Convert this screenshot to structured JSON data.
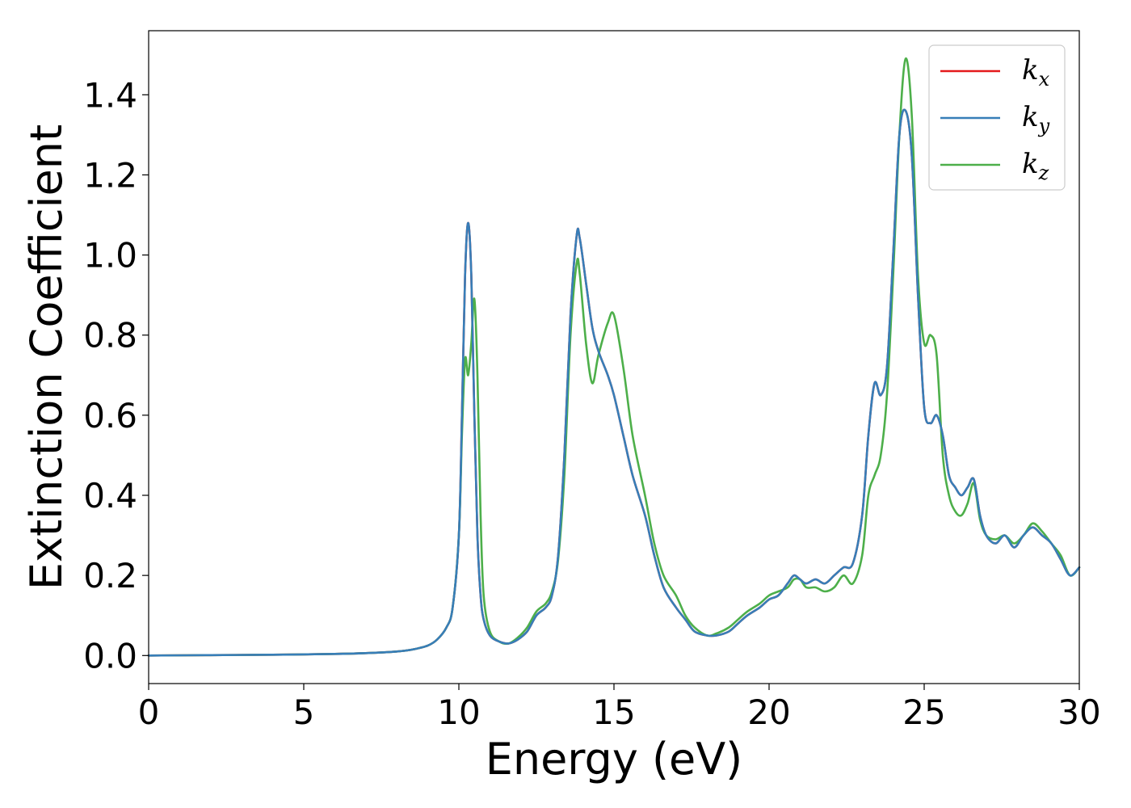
{
  "chart_data": {
    "type": "line",
    "title": "",
    "xlabel": "Energy (eV)",
    "ylabel": "Extinction Coefficient",
    "xlim": [
      0,
      30
    ],
    "ylim": [
      -0.07,
      1.56
    ],
    "xticks": [
      0,
      5,
      10,
      15,
      20,
      25,
      30
    ],
    "xtick_labels": [
      "0",
      "5",
      "10",
      "15",
      "20",
      "25",
      "30"
    ],
    "yticks": [
      0.0,
      0.2,
      0.4,
      0.6,
      0.8,
      1.0,
      1.2,
      1.4
    ],
    "ytick_labels": [
      "0.0",
      "0.2",
      "0.4",
      "0.6",
      "0.8",
      "1.0",
      "1.2",
      "1.4"
    ],
    "grid": false,
    "legend_position": "top-right",
    "series": [
      {
        "name": "kx",
        "label_base": "k",
        "label_sub": "x",
        "color": "#e41a1c",
        "x": [
          0,
          2,
          4,
          6,
          7,
          8,
          8.5,
          9,
          9.3,
          9.6,
          9.8,
          10.0,
          10.1,
          10.2,
          10.3,
          10.4,
          10.5,
          10.6,
          10.7,
          10.8,
          11.0,
          11.3,
          11.6,
          11.9,
          12.2,
          12.5,
          12.8,
          13.0,
          13.2,
          13.4,
          13.6,
          13.8,
          13.9,
          14.1,
          14.3,
          14.5,
          14.8,
          15.0,
          15.3,
          15.6,
          16.0,
          16.3,
          16.6,
          17.0,
          17.3,
          17.6,
          18.0,
          18.3,
          18.7,
          19.0,
          19.3,
          19.7,
          20.0,
          20.3,
          20.6,
          20.8,
          21.0,
          21.2,
          21.5,
          21.8,
          22.1,
          22.4,
          22.7,
          23.0,
          23.2,
          23.4,
          23.6,
          23.8,
          24.0,
          24.2,
          24.4,
          24.6,
          24.8,
          25.0,
          25.2,
          25.4,
          25.6,
          25.8,
          26.0,
          26.2,
          26.4,
          26.6,
          26.8,
          27.0,
          27.3,
          27.6,
          27.9,
          28.2,
          28.5,
          28.8,
          29.1,
          29.4,
          29.7,
          30.0
        ],
        "values": [
          0,
          0.001,
          0.002,
          0.004,
          0.006,
          0.01,
          0.015,
          0.025,
          0.04,
          0.07,
          0.12,
          0.3,
          0.6,
          0.95,
          1.08,
          0.95,
          0.6,
          0.3,
          0.15,
          0.09,
          0.05,
          0.035,
          0.03,
          0.04,
          0.06,
          0.1,
          0.12,
          0.15,
          0.25,
          0.5,
          0.85,
          1.05,
          1.04,
          0.93,
          0.82,
          0.76,
          0.7,
          0.65,
          0.55,
          0.45,
          0.35,
          0.25,
          0.17,
          0.12,
          0.09,
          0.06,
          0.05,
          0.05,
          0.06,
          0.08,
          0.1,
          0.12,
          0.14,
          0.15,
          0.18,
          0.2,
          0.19,
          0.18,
          0.19,
          0.18,
          0.2,
          0.22,
          0.23,
          0.35,
          0.55,
          0.68,
          0.65,
          0.72,
          1.0,
          1.3,
          1.36,
          1.25,
          0.9,
          0.62,
          0.58,
          0.6,
          0.55,
          0.45,
          0.42,
          0.4,
          0.42,
          0.44,
          0.35,
          0.3,
          0.28,
          0.3,
          0.27,
          0.3,
          0.32,
          0.3,
          0.28,
          0.24,
          0.2,
          0.22
        ]
      },
      {
        "name": "ky",
        "label_base": "k",
        "label_sub": "y",
        "color": "#377eb8",
        "x": [
          0,
          2,
          4,
          6,
          7,
          8,
          8.5,
          9,
          9.3,
          9.6,
          9.8,
          10.0,
          10.1,
          10.2,
          10.3,
          10.4,
          10.5,
          10.6,
          10.7,
          10.8,
          11.0,
          11.3,
          11.6,
          11.9,
          12.2,
          12.5,
          12.8,
          13.0,
          13.2,
          13.4,
          13.6,
          13.8,
          13.9,
          14.1,
          14.3,
          14.5,
          14.8,
          15.0,
          15.3,
          15.6,
          16.0,
          16.3,
          16.6,
          17.0,
          17.3,
          17.6,
          18.0,
          18.3,
          18.7,
          19.0,
          19.3,
          19.7,
          20.0,
          20.3,
          20.6,
          20.8,
          21.0,
          21.2,
          21.5,
          21.8,
          22.1,
          22.4,
          22.7,
          23.0,
          23.2,
          23.4,
          23.6,
          23.8,
          24.0,
          24.2,
          24.4,
          24.6,
          24.8,
          25.0,
          25.2,
          25.4,
          25.6,
          25.8,
          26.0,
          26.2,
          26.4,
          26.6,
          26.8,
          27.0,
          27.3,
          27.6,
          27.9,
          28.2,
          28.5,
          28.8,
          29.1,
          29.4,
          29.7,
          30.0
        ],
        "values": [
          0,
          0.001,
          0.002,
          0.004,
          0.006,
          0.01,
          0.015,
          0.025,
          0.04,
          0.07,
          0.12,
          0.3,
          0.6,
          0.95,
          1.08,
          0.95,
          0.6,
          0.3,
          0.15,
          0.09,
          0.05,
          0.035,
          0.03,
          0.04,
          0.06,
          0.1,
          0.12,
          0.15,
          0.25,
          0.5,
          0.85,
          1.05,
          1.04,
          0.93,
          0.82,
          0.76,
          0.7,
          0.65,
          0.55,
          0.45,
          0.35,
          0.25,
          0.17,
          0.12,
          0.09,
          0.06,
          0.05,
          0.05,
          0.06,
          0.08,
          0.1,
          0.12,
          0.14,
          0.15,
          0.18,
          0.2,
          0.19,
          0.18,
          0.19,
          0.18,
          0.2,
          0.22,
          0.23,
          0.35,
          0.55,
          0.68,
          0.65,
          0.72,
          1.0,
          1.3,
          1.36,
          1.25,
          0.9,
          0.62,
          0.58,
          0.6,
          0.55,
          0.45,
          0.42,
          0.4,
          0.42,
          0.44,
          0.35,
          0.3,
          0.28,
          0.3,
          0.27,
          0.3,
          0.32,
          0.3,
          0.28,
          0.24,
          0.2,
          0.22
        ]
      },
      {
        "name": "kz",
        "label_base": "k",
        "label_sub": "z",
        "color": "#4daf4a",
        "x": [
          0,
          2,
          4,
          6,
          7,
          8,
          8.5,
          9,
          9.3,
          9.6,
          9.8,
          10.0,
          10.1,
          10.2,
          10.3,
          10.4,
          10.5,
          10.6,
          10.7,
          10.8,
          11.0,
          11.3,
          11.6,
          11.9,
          12.2,
          12.5,
          12.8,
          13.0,
          13.2,
          13.4,
          13.6,
          13.8,
          13.9,
          14.1,
          14.3,
          14.5,
          14.8,
          15.0,
          15.3,
          15.6,
          16.0,
          16.3,
          16.6,
          17.0,
          17.3,
          17.6,
          18.0,
          18.3,
          18.7,
          19.0,
          19.3,
          19.7,
          20.0,
          20.3,
          20.6,
          20.8,
          21.0,
          21.2,
          21.5,
          21.8,
          22.1,
          22.4,
          22.7,
          23.0,
          23.2,
          23.4,
          23.6,
          23.8,
          24.0,
          24.2,
          24.4,
          24.6,
          24.8,
          25.0,
          25.2,
          25.4,
          25.6,
          25.8,
          26.0,
          26.2,
          26.4,
          26.6,
          26.8,
          27.0,
          27.3,
          27.6,
          27.9,
          28.2,
          28.5,
          28.8,
          29.1,
          29.4,
          29.7,
          30.0
        ],
        "values": [
          0,
          0.001,
          0.002,
          0.004,
          0.006,
          0.01,
          0.015,
          0.025,
          0.04,
          0.07,
          0.12,
          0.3,
          0.55,
          0.74,
          0.7,
          0.78,
          0.89,
          0.7,
          0.35,
          0.15,
          0.06,
          0.035,
          0.03,
          0.045,
          0.07,
          0.11,
          0.13,
          0.16,
          0.24,
          0.45,
          0.8,
          0.98,
          0.95,
          0.78,
          0.68,
          0.75,
          0.83,
          0.85,
          0.72,
          0.55,
          0.4,
          0.28,
          0.2,
          0.15,
          0.1,
          0.07,
          0.05,
          0.055,
          0.07,
          0.09,
          0.11,
          0.13,
          0.15,
          0.16,
          0.17,
          0.19,
          0.19,
          0.17,
          0.17,
          0.16,
          0.17,
          0.2,
          0.18,
          0.25,
          0.4,
          0.45,
          0.5,
          0.65,
          0.95,
          1.3,
          1.49,
          1.35,
          0.95,
          0.78,
          0.8,
          0.75,
          0.5,
          0.4,
          0.36,
          0.35,
          0.38,
          0.43,
          0.34,
          0.3,
          0.29,
          0.3,
          0.28,
          0.3,
          0.33,
          0.31,
          0.28,
          0.25,
          0.2,
          0.22
        ]
      }
    ]
  }
}
